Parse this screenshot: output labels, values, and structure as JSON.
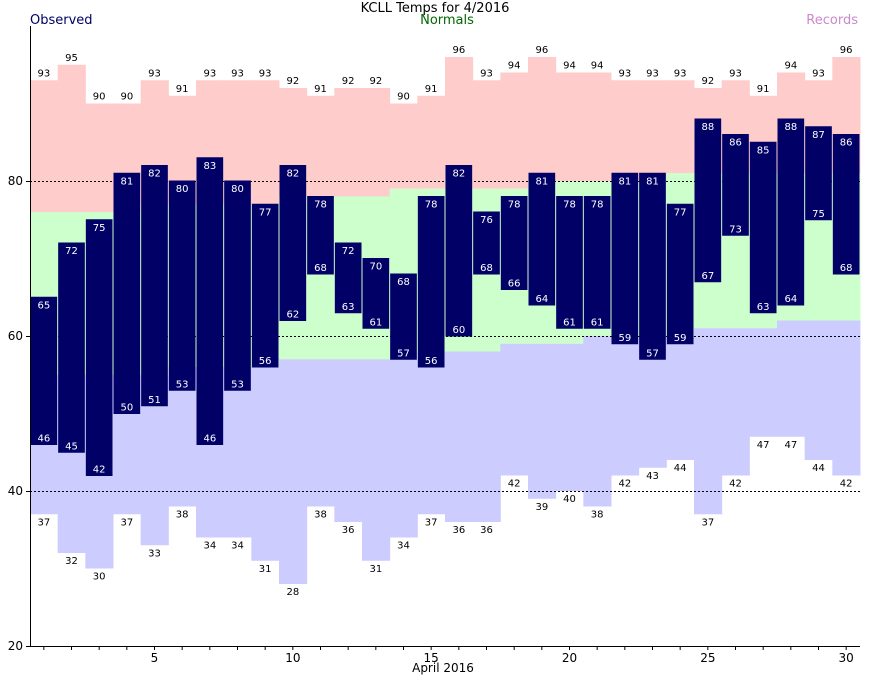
{
  "chart_data": {
    "type": "bar",
    "title": "KCLL Temps for 4/2016",
    "legend": {
      "observed": "Observed",
      "normals": "Normals",
      "records": "Records"
    },
    "xlabel": "April 2016",
    "ylim": [
      20,
      100
    ],
    "yticks": [
      "20",
      "40",
      "60",
      "80"
    ],
    "ytick_values": [
      20,
      40,
      60,
      80
    ],
    "xticks": [
      "5",
      "10",
      "15",
      "20",
      "25",
      "30"
    ],
    "xtick_values": [
      5,
      10,
      15,
      20,
      25,
      30
    ],
    "days": [
      1,
      2,
      3,
      4,
      5,
      6,
      7,
      8,
      9,
      10,
      11,
      12,
      13,
      14,
      15,
      16,
      17,
      18,
      19,
      20,
      21,
      22,
      23,
      24,
      25,
      26,
      27,
      28,
      29,
      30
    ],
    "observed_high": [
      65,
      72,
      75,
      81,
      82,
      80,
      83,
      80,
      77,
      82,
      78,
      72,
      70,
      68,
      78,
      82,
      76,
      78,
      81,
      78,
      78,
      81,
      81,
      77,
      88,
      86,
      85,
      88,
      87,
      86
    ],
    "observed_low": [
      46,
      45,
      42,
      50,
      51,
      53,
      46,
      53,
      56,
      62,
      68,
      63,
      61,
      57,
      56,
      60,
      68,
      66,
      64,
      61,
      61,
      59,
      57,
      59,
      67,
      73,
      63,
      64,
      75,
      68
    ],
    "record_high": [
      93,
      95,
      90,
      90,
      93,
      91,
      93,
      93,
      93,
      92,
      91,
      92,
      92,
      90,
      91,
      96,
      93,
      94,
      96,
      94,
      94,
      93,
      93,
      93,
      92,
      93,
      91,
      94,
      93,
      96
    ],
    "record_low": [
      37,
      32,
      30,
      37,
      33,
      38,
      34,
      34,
      31,
      28,
      38,
      36,
      31,
      34,
      37,
      36,
      36,
      42,
      39,
      40,
      38,
      42,
      43,
      44,
      37,
      42,
      47,
      47,
      44,
      42
    ],
    "normal_high": [
      76,
      76,
      76,
      76,
      77,
      77,
      77,
      77,
      77,
      78,
      78,
      78,
      78,
      79,
      79,
      79,
      79,
      79,
      80,
      80,
      80,
      80,
      80,
      81,
      81,
      81,
      81,
      81,
      81,
      81
    ],
    "normal_low": [
      55,
      55,
      55,
      55,
      55,
      56,
      56,
      56,
      56,
      57,
      57,
      57,
      57,
      57,
      58,
      58,
      58,
      59,
      59,
      59,
      60,
      60,
      60,
      60,
      61,
      61,
      61,
      62,
      62,
      62
    ],
    "colors": {
      "observed": "#000066",
      "observed_text": "#ffffff",
      "record_high": "#ffcccc",
      "normal": "#ccffcc",
      "record_low": "#ccccff",
      "title": "#000000",
      "observed_legend": "#000066",
      "normals_legend": "#006600",
      "records_legend": "#cc88cc",
      "grid": "#000000"
    }
  }
}
